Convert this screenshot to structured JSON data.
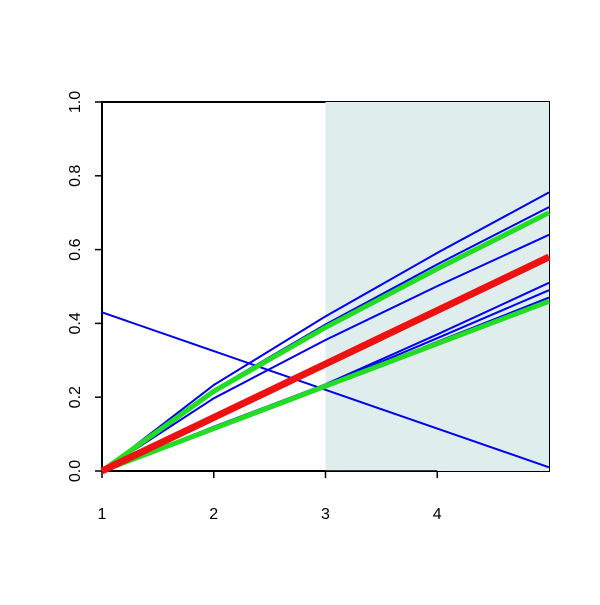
{
  "chart_data": {
    "type": "line",
    "x": [
      1,
      2,
      3,
      4,
      5
    ],
    "xlim": [
      1,
      5
    ],
    "xticks": [
      1,
      2,
      3,
      4
    ],
    "ylim": [
      0,
      1
    ],
    "yticks": [
      {
        "value": 0,
        "label": "0.0"
      },
      0.2,
      0.4,
      0.6,
      0.8,
      {
        "value": 1,
        "label": "1.0"
      }
    ],
    "shaded_region": [
      3,
      5
    ],
    "shade_color": "#e0eded",
    "series": [
      {
        "color": "#0000ee",
        "width": 2,
        "values": [
          0,
          0.233,
          0.419,
          0.591,
          0.755
        ]
      },
      {
        "color": "#0000ee",
        "width": 2,
        "values": [
          0,
          0.22,
          0.397,
          0.56,
          0.715
        ]
      },
      {
        "color": "#0000ee",
        "width": 2,
        "values": [
          0,
          0.197,
          0.355,
          0.501,
          0.64
        ]
      },
      {
        "color": "#0000ee",
        "width": 2,
        "values": [
          0,
          0.12,
          0.235,
          0.37,
          0.51
        ]
      },
      {
        "color": "#0000ee",
        "width": 2,
        "values": [
          0,
          0.118,
          0.232,
          0.36,
          0.49
        ]
      },
      {
        "color": "#0000ee",
        "width": 2,
        "values": [
          0,
          0.116,
          0.23,
          0.35,
          0.47
        ]
      },
      {
        "color": "#0000ee",
        "width": 2,
        "values": [
          0.43,
          0.325,
          0.22,
          0.115,
          0.01
        ]
      },
      {
        "color": "#22dd22",
        "width": 5,
        "values": [
          0,
          0.216,
          0.389,
          0.548,
          0.7
        ]
      },
      {
        "color": "#22dd22",
        "width": 5,
        "values": [
          0,
          0.115,
          0.23,
          0.345,
          0.46
        ]
      },
      {
        "color": "#ee1111",
        "width": 7,
        "values": [
          0,
          0.145,
          0.29,
          0.435,
          0.58
        ]
      }
    ]
  }
}
